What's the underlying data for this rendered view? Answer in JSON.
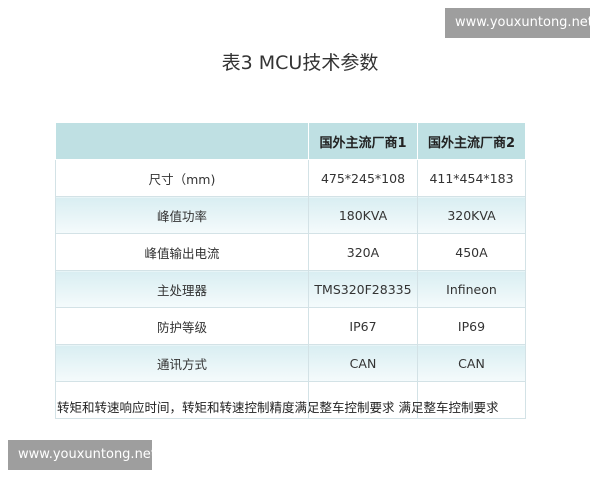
{
  "title": "表3 MCU技术参数",
  "watermarks": [
    "www.youxuntong.net",
    "www.youxuntong.net"
  ],
  "table": {
    "headers": [
      "",
      "国外主流厂商1",
      "国外主流厂商2"
    ],
    "rows": [
      [
        "尺寸（mm)",
        "475*245*108",
        "411*454*183"
      ],
      [
        "峰值功率",
        "180KVA",
        "320KVA"
      ],
      [
        "峰值输出电流",
        "320A",
        "450A"
      ],
      [
        "主处理器",
        "TMS320F28335",
        "Infineon"
      ],
      [
        "防护等级",
        "IP67",
        "IP69"
      ],
      [
        "通讯方式",
        "CAN",
        "CAN"
      ]
    ],
    "note_row": "转矩和转速响应时间，转矩和转速控制精度满足整车控制要求 满足整车控制要求"
  }
}
